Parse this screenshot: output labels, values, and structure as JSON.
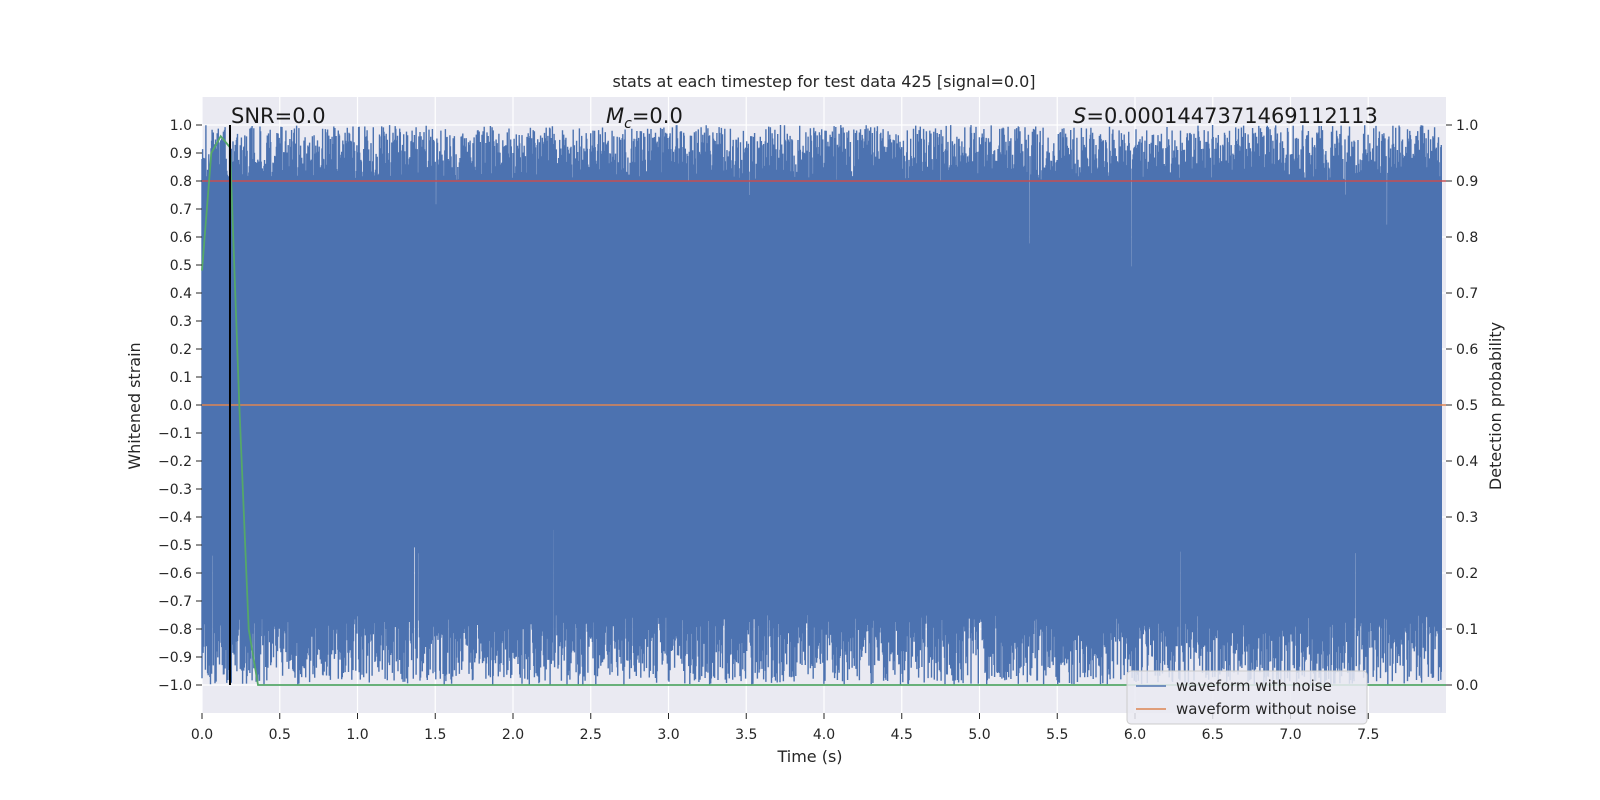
{
  "chart_data": {
    "type": "line",
    "title": "stats at each timestep for test data 425 [signal=0.0]",
    "xlabel": "Time (s)",
    "ylabel_left": "Whitened strain",
    "ylabel_right": "Detection probability",
    "xlim": [
      0.0,
      8.0
    ],
    "ylim_left": [
      -1.1,
      1.1
    ],
    "ylim_right": [
      -0.05,
      1.05
    ],
    "x_ticks": [
      "0.0",
      "0.5",
      "1.0",
      "1.5",
      "2.0",
      "2.5",
      "3.0",
      "3.5",
      "4.0",
      "4.5",
      "5.0",
      "5.5",
      "6.0",
      "6.5",
      "7.0",
      "7.5"
    ],
    "y_left_ticks": [
      "1.0",
      "0.9",
      "0.8",
      "0.7",
      "0.6",
      "0.5",
      "0.4",
      "0.3",
      "0.2",
      "0.1",
      "0.0",
      "−0.1",
      "−0.2",
      "−0.3",
      "−0.4",
      "−0.5",
      "−0.6",
      "−0.7",
      "−0.8",
      "−0.9",
      "−1.0"
    ],
    "y_right_ticks": [
      "1.0",
      "0.9",
      "0.8",
      "0.7",
      "0.6",
      "0.5",
      "0.4",
      "0.3",
      "0.2",
      "0.1",
      "0.0"
    ],
    "annotations": {
      "snr": "SNR=0.0",
      "mc_symbol": "M",
      "mc_sub": "c",
      "mc_value": "=0.0",
      "s_symbol": "S",
      "s_value": "=0.0001447371469112113"
    },
    "series": [
      {
        "name": "waveform with noise",
        "color": "#4c72b0",
        "axis": "left",
        "description": "whitened noisy strain spanning approximately -1.0 to 1.0 over 0-8 s",
        "range": [
          -1.0,
          1.0
        ]
      },
      {
        "name": "waveform without noise",
        "color": "#dd8452",
        "axis": "left",
        "x": [
          0.0,
          8.0
        ],
        "y": [
          0.0,
          0.0
        ]
      },
      {
        "name": "detection probability",
        "color": "#55a868",
        "axis": "right",
        "x": [
          0.0,
          0.06,
          0.12,
          0.18,
          0.24,
          0.3,
          0.36,
          0.4,
          8.0
        ],
        "y": [
          0.74,
          0.95,
          0.98,
          0.96,
          0.5,
          0.1,
          0.0,
          0.0,
          0.0
        ]
      },
      {
        "name": "threshold",
        "color": "#c44e52",
        "axis": "right",
        "x": [
          0.0,
          8.0
        ],
        "y": [
          0.9,
          0.9
        ]
      }
    ],
    "marker_line": {
      "x": 0.18,
      "color": "#000000"
    },
    "legend": {
      "position": "lower-right",
      "entries": [
        "waveform with noise",
        "waveform without noise"
      ]
    }
  }
}
